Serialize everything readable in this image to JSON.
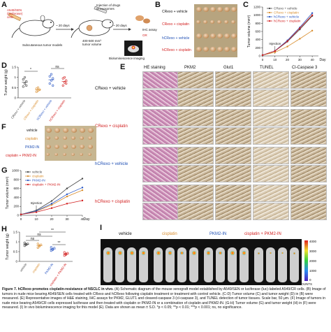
{
  "panel_letters": {
    "a": "A",
    "b": "B",
    "c": "C",
    "d": "D",
    "e": "E",
    "f": "F",
    "g": "G",
    "h": "H",
    "i": "I"
  },
  "panel_a": {
    "cells_label": "A549/SEN\n(luciferase)\ncells",
    "injection_label": "Injection of drugs\nor exosomes",
    "days1": "~ 20 days",
    "days2": "~ 20 days",
    "volume_label": "400-500 mm³\ntumor volume",
    "ihc_label": "IHC assay",
    "or_label": "OR",
    "subcut_label": "Subcutaneous tumor models",
    "biolum_label": "Bioluminescence imaging"
  },
  "panel_b": {
    "rows": [
      "CRexo + vehicle",
      "CRexo + cisplatin",
      "hCRexo + vehicle",
      "hCRexo + cisplatin"
    ]
  },
  "chart_data": [
    {
      "id": "C",
      "type": "line",
      "ylabel": "Tumor volume (mm³)",
      "xlabel": "Day",
      "x": [
        0,
        10,
        20,
        30,
        40
      ],
      "xlim": [
        0,
        45
      ],
      "ylim": [
        0,
        1200
      ],
      "yticks": [
        0,
        200,
        400,
        600,
        800,
        1000,
        1200
      ],
      "annotation": "Injection",
      "series": [
        {
          "name": "CRexo + vehicle",
          "color": "#444444",
          "values": [
            20,
            120,
            350,
            650,
            980
          ]
        },
        {
          "name": "CRexo + cisplatin",
          "color": "#d98c2b",
          "values": [
            20,
            90,
            230,
            420,
            620
          ]
        },
        {
          "name": "hCRexo + vehicle",
          "color": "#2a57c4",
          "values": [
            20,
            125,
            380,
            700,
            1050
          ]
        },
        {
          "name": "hCRexo + cisplatin",
          "color": "#d21f1f",
          "values": [
            20,
            120,
            360,
            680,
            1000
          ]
        }
      ]
    },
    {
      "id": "D",
      "type": "scatter",
      "ylabel": "Tumor weight (g)",
      "categories": [
        "CRexo + vehicle",
        "CRexo + cisplatin",
        "hCRexo + vehicle",
        "hCRexo + cisplatin"
      ],
      "ylim": [
        0,
        1.5
      ],
      "yticks": [
        0,
        0.5,
        1.0,
        1.5
      ],
      "colors": [
        "#444444",
        "#d98c2b",
        "#2a57c4",
        "#d21f1f"
      ],
      "points": [
        [
          0.55,
          0.7,
          0.8,
          0.9,
          1.0,
          0.6
        ],
        [
          0.3,
          0.35,
          0.4,
          0.45,
          0.5
        ],
        [
          0.7,
          0.85,
          0.95,
          1.05,
          1.15,
          0.6
        ],
        [
          0.6,
          0.75,
          0.85,
          0.95,
          1.0,
          0.7
        ]
      ],
      "significance": [
        "*",
        "ns"
      ]
    },
    {
      "id": "G",
      "type": "line",
      "ylabel": "Tumor volume (mm³)",
      "xlabel": "Day",
      "x": [
        0,
        10,
        20,
        30,
        40
      ],
      "xlim": [
        0,
        40
      ],
      "ylim": [
        0,
        1000
      ],
      "yticks": [
        0,
        200,
        400,
        600,
        800,
        1000
      ],
      "annotation": "Injection",
      "series": [
        {
          "name": "vehicle",
          "color": "#444444",
          "values": [
            20,
            110,
            320,
            600,
            820
          ]
        },
        {
          "name": "cisplatin",
          "color": "#d98c2b",
          "values": [
            20,
            90,
            230,
            420,
            560
          ]
        },
        {
          "name": "PKM2-IN",
          "color": "#2a57c4",
          "values": [
            20,
            95,
            260,
            470,
            620
          ]
        },
        {
          "name": "cisplatin + PKM2-IN",
          "color": "#d21f1f",
          "values": [
            20,
            70,
            160,
            260,
            330
          ]
        }
      ]
    },
    {
      "id": "H",
      "type": "scatter",
      "ylabel": "Tumor weight (g)",
      "categories": [
        "vehicle",
        "cisplatin",
        "PKM2-IN",
        "cisplatin + PKM2-IN"
      ],
      "ylim": [
        0,
        1.5
      ],
      "yticks": [
        0,
        0.5,
        1.0,
        1.5
      ],
      "colors": [
        "#444444",
        "#d98c2b",
        "#2a57c4",
        "#d21f1f"
      ],
      "points": [
        [
          0.8,
          0.85,
          0.9,
          0.95,
          0.88
        ],
        [
          0.7,
          0.8,
          0.85,
          0.9,
          0.78
        ],
        [
          0.55,
          0.62,
          0.68,
          0.72,
          0.6
        ],
        [
          0.3,
          0.38,
          0.42,
          0.46,
          0.35
        ]
      ],
      "significance": [
        "ns",
        "ns",
        "**",
        "**"
      ]
    }
  ],
  "panel_e": {
    "columns": [
      "HE staining",
      "PKM2",
      "Glut1",
      "TUNEL",
      "Cl-Caspase 3"
    ],
    "rows": [
      "CRexo + vehicle",
      "CRexo + cisplatin",
      "hCRexo + vehicle",
      "hCRexo + cisplatin"
    ]
  },
  "panel_f": {
    "rows": [
      "vehicle",
      "cisplatin",
      "PKM2-IN",
      "cisplatin + PKM2-IN"
    ]
  },
  "panel_i": {
    "groups": [
      "vehicle",
      "cisplatin",
      "PKM2-IN",
      "cisplatin + PKM2-IN"
    ],
    "colorbar": [
      "4000",
      "3000",
      "2000",
      "1000",
      "0"
    ],
    "colorbar_unit": "COUNTS"
  },
  "caption": {
    "fig": "Figure 7. hCRexo promotes cisplatin-resistance of NSCLC in vivo.",
    "text": " (A) Schematic diagram of the mouse xenograft model established by A549/SEN or luciferase (luc)-labeled A549/CR cells. (B) Image of tumors in nude mice bearing A549/SEN cells treated with CRexo and hCRexo following cisplatin treatment or treatment with control vehicle. (C-D) Tumor volume (C) and tumor weight (D) in (B) were measured. (E) Representative images of H&E staining, IHC assays for PKM2, GLUT1 and cleaved-caspase 3 (cl-caspase 3), and TUNEL detection of tumor tissues. Scale bar, 50 μm. (F) Image of tumors in nude mice bearing A549/CR cells expressed luciferase and then treated with cisplatin or PKM2-IN or a combination of cisplatin and PKM2-IN. (G-H) Tumor volume (G) and tumor weight (H) in (F) were measured. (I) In vivo bioluminescence imaging for this model (E). Data are shown as mean ± S.D. *p < 0.05; **p < 0.01; ***p < 0.001; ns, no significance."
  }
}
